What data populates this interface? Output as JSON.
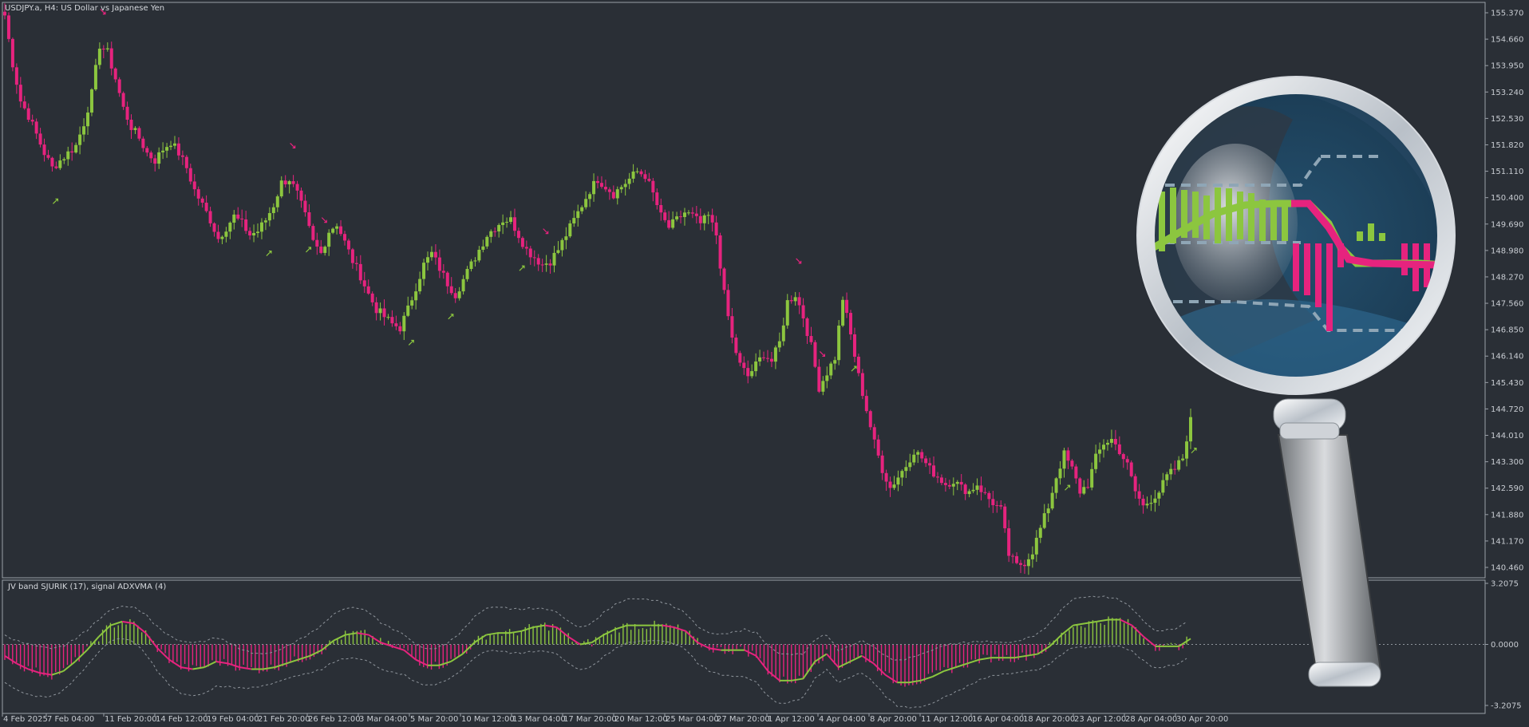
{
  "header": {
    "symbol_title": "USDJPY.a, H4:  US Dollar vs Japanese Yen",
    "indicator_title": "JV  band  SJURIK (17), signal ADXVMA (4)"
  },
  "colors": {
    "background": "#2a2f36",
    "frame": "#9aa0a8",
    "bull": "#8cc63f",
    "bear": "#e6237e",
    "band_dotted": "#8f959c",
    "axis_text": "#c8ccd2"
  },
  "icons": [
    "magnifier-icon"
  ],
  "chart_data": [
    {
      "type": "candlestick",
      "title": "USDJPY.a, H4:  US Dollar vs Japanese Yen",
      "ylim": [
        139.8,
        155.7
      ],
      "y_ticks": [
        "155.370",
        "154.660",
        "153.950",
        "153.240",
        "152.530",
        "151.820",
        "151.110",
        "150.400",
        "149.690",
        "148.980",
        "148.270",
        "147.560",
        "146.850",
        "146.140",
        "145.430",
        "144.720",
        "144.010",
        "143.300",
        "142.590",
        "141.880",
        "141.170",
        "140.460"
      ],
      "x_ticks": [
        "4 Feb 2025",
        "7 Feb 04:00",
        "11 Feb 20:00",
        "14 Feb 12:00",
        "19 Feb 04:00",
        "21 Feb 20:00",
        "26 Feb 12:00",
        "3 Mar 04:00",
        "5 Mar 20:00",
        "10 Mar 12:00",
        "13 Mar 04:00",
        "17 Mar 20:00",
        "20 Mar 12:00",
        "25 Mar 04:00",
        "27 Mar 20:00",
        "1 Apr 12:00",
        "4 Apr 04:00",
        "8 Apr 20:00",
        "11 Apr 12:00",
        "16 Apr 04:00",
        "18 Apr 20:00",
        "23 Apr 12:00",
        "28 Apr 04:00",
        "30 Apr 20:00"
      ],
      "close_path": [
        155.3,
        154.0,
        153.0,
        152.6,
        152.1,
        151.6,
        151.2,
        151.4,
        151.6,
        151.8,
        152.4,
        153.2,
        154.5,
        154.3,
        153.6,
        152.8,
        152.3,
        152.0,
        151.6,
        151.4,
        151.7,
        151.9,
        151.6,
        151.2,
        150.6,
        150.2,
        149.8,
        149.3,
        149.6,
        149.9,
        149.7,
        149.4,
        149.5,
        149.8,
        150.2,
        150.8,
        150.9,
        150.5,
        149.9,
        149.2,
        148.9,
        149.5,
        149.7,
        149.2,
        148.7,
        148.3,
        147.8,
        147.4,
        147.2,
        147.0,
        146.9,
        147.4,
        148.0,
        148.6,
        148.9,
        148.5,
        148.1,
        147.8,
        148.2,
        148.6,
        149.0,
        149.4,
        149.6,
        149.8,
        149.8,
        149.4,
        149.0,
        148.8,
        148.6,
        148.7,
        149.0,
        149.4,
        149.8,
        150.2,
        150.6,
        150.9,
        150.7,
        150.5,
        150.7,
        150.9,
        151.1,
        151.0,
        150.5,
        149.9,
        149.6,
        149.8,
        150.0,
        149.9,
        149.7,
        149.9,
        149.4,
        147.8,
        146.6,
        145.9,
        145.6,
        145.9,
        146.2,
        146.0,
        146.5,
        147.6,
        147.8,
        147.2,
        146.4,
        145.3,
        145.7,
        146.1,
        147.7,
        146.7,
        145.6,
        144.7,
        143.8,
        143.1,
        142.6,
        142.9,
        143.2,
        143.6,
        143.4,
        143.1,
        142.9,
        142.7,
        142.8,
        142.6,
        142.5,
        142.7,
        142.4,
        142.2,
        142.0,
        140.8,
        140.5,
        140.6,
        140.9,
        141.5,
        142.1,
        142.9,
        143.5,
        143.1,
        142.5,
        142.7,
        143.4,
        143.8,
        143.9,
        143.6,
        143.2,
        142.5,
        142.1,
        142.3,
        142.5,
        142.9,
        143.1,
        143.4,
        144.5
      ],
      "signal_arrows": [
        {
          "i": 12,
          "dir": "down"
        },
        {
          "i": 6,
          "dir": "up"
        },
        {
          "i": 36,
          "dir": "down"
        },
        {
          "i": 40,
          "dir": "down"
        },
        {
          "i": 33,
          "dir": "up"
        },
        {
          "i": 38,
          "dir": "up"
        },
        {
          "i": 51,
          "dir": "up"
        },
        {
          "i": 56,
          "dir": "up"
        },
        {
          "i": 65,
          "dir": "up"
        },
        {
          "i": 68,
          "dir": "down"
        },
        {
          "i": 100,
          "dir": "down"
        },
        {
          "i": 103,
          "dir": "down"
        },
        {
          "i": 107,
          "dir": "up"
        },
        {
          "i": 134,
          "dir": "up"
        },
        {
          "i": 150,
          "dir": "up"
        }
      ]
    },
    {
      "type": "oscillator",
      "title": "JV  band  SJURIK (17), signal ADXVMA (4)",
      "ylim": [
        -3.2075,
        3.2075
      ],
      "y_ticks": [
        "3.2075",
        "0.0000",
        "-3.2075"
      ],
      "line_path": [
        -0.6,
        -1.0,
        -1.3,
        -1.5,
        -1.6,
        -1.4,
        -0.9,
        -0.3,
        0.4,
        1.0,
        1.2,
        1.1,
        0.6,
        -0.2,
        -0.8,
        -1.2,
        -1.3,
        -1.2,
        -0.9,
        -1.0,
        -1.2,
        -1.3,
        -1.3,
        -1.2,
        -1.0,
        -0.8,
        -0.6,
        -0.3,
        0.2,
        0.5,
        0.6,
        0.5,
        0.1,
        -0.1,
        -0.3,
        -0.8,
        -1.1,
        -1.1,
        -0.9,
        -0.5,
        0.1,
        0.5,
        0.6,
        0.6,
        0.7,
        0.9,
        1.0,
        0.9,
        0.4,
        0.0,
        0.1,
        0.5,
        0.8,
        1.0,
        1.0,
        1.0,
        1.0,
        0.9,
        0.7,
        0.1,
        -0.2,
        -0.3,
        -0.3,
        -0.3,
        -0.6,
        -1.4,
        -1.9,
        -1.9,
        -1.8,
        -0.9,
        -0.5,
        -1.2,
        -0.9,
        -0.6,
        -1.0,
        -1.6,
        -2.0,
        -2.0,
        -1.9,
        -1.7,
        -1.4,
        -1.2,
        -1.0,
        -0.8,
        -0.7,
        -0.7,
        -0.7,
        -0.6,
        -0.5,
        -0.1,
        0.5,
        1.0,
        1.1,
        1.2,
        1.3,
        1.3,
        1.0,
        0.4,
        -0.1,
        -0.1,
        -0.1,
        0.3
      ]
    }
  ]
}
